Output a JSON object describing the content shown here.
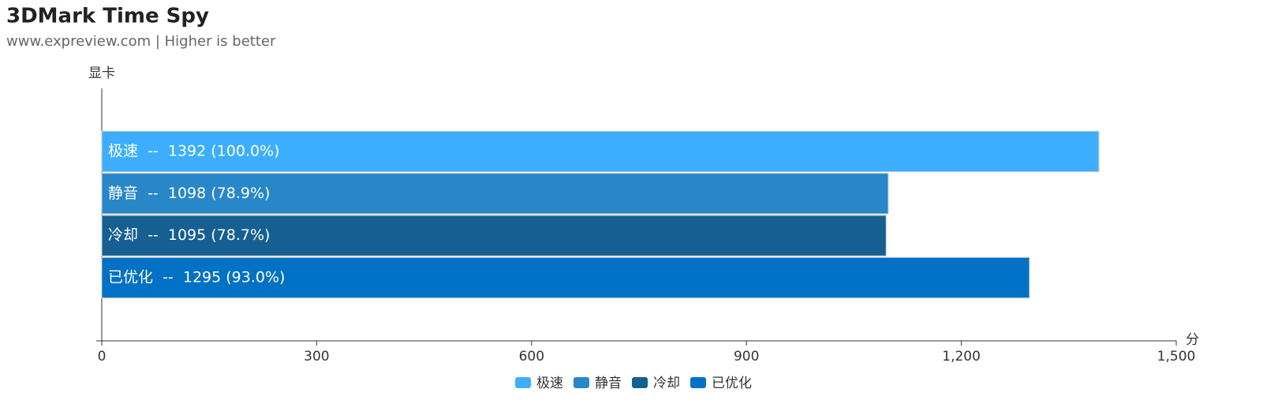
{
  "chart_data": {
    "type": "bar",
    "orientation": "horizontal",
    "title": "3DMark Time Spy",
    "subtitle": "www.expreview.com | Higher is better",
    "y_label": "显卡",
    "x_label": "分",
    "series": [
      {
        "name": "极速",
        "color": "#3daeff",
        "values": [
          1392
        ],
        "value_labels": [
          "极速  --  1392 (100.0%)"
        ]
      },
      {
        "name": "静音",
        "color": "#2887c9",
        "values": [
          1098
        ],
        "value_labels": [
          "静音  --  1098 (78.9%)"
        ]
      },
      {
        "name": "冷却",
        "color": "#155f93",
        "values": [
          1095
        ],
        "value_labels": [
          "冷却  --  1095 (78.7%)"
        ]
      },
      {
        "name": "已优化",
        "color": "#0071c5",
        "values": [
          1295
        ],
        "value_labels": [
          "已优化  --  1295 (93.0%)"
        ]
      }
    ],
    "xlim": [
      0,
      1500
    ],
    "xticks": [
      0,
      300,
      600,
      900,
      {
        "value": 1200,
        "label": "1,200"
      },
      {
        "value": 1500,
        "label": "1,500"
      }
    ],
    "legend": "bottom",
    "grid": false
  }
}
